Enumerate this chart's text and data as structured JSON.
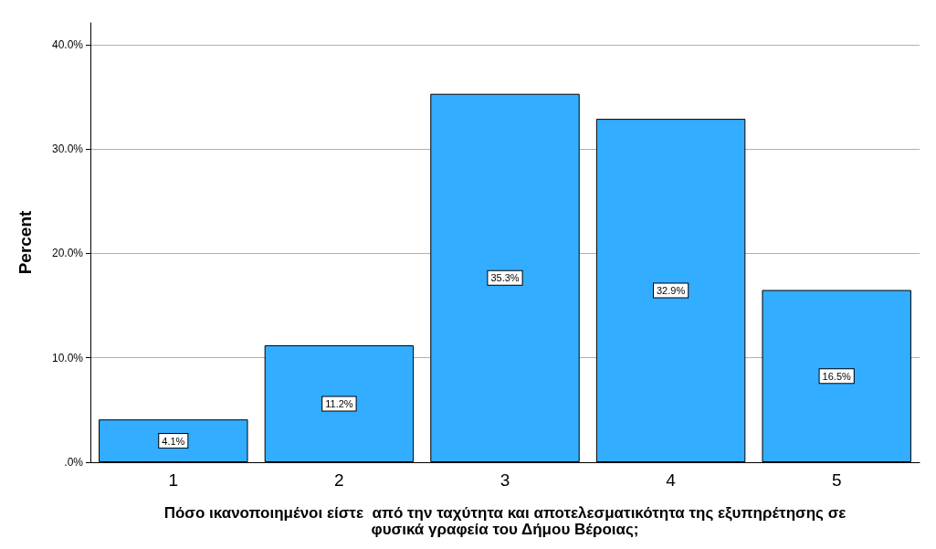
{
  "chart_data": {
    "type": "bar",
    "categories": [
      "1",
      "2",
      "3",
      "4",
      "5"
    ],
    "values": [
      4.1,
      11.2,
      35.3,
      32.9,
      16.5
    ],
    "value_labels": [
      "4.1%",
      "11.2%",
      "35.3%",
      "32.9%",
      "16.5%"
    ],
    "color": "#33adff",
    "xlabel": "Πόσο ικανοποιημένοι είστε  από την ταχύτητα και αποτελεσματικότητα της εξυπηρέτησης σε\nφυσικά γραφεία του Δήμου Βέροιας;",
    "ylabel": "Percent",
    "ylim": [
      0,
      42.1
    ],
    "yticks": [
      {
        "value": 0,
        "label": ".0%"
      },
      {
        "value": 10,
        "label": "10.0%"
      },
      {
        "value": 20,
        "label": "20.0%"
      },
      {
        "value": 30,
        "label": "30.0%"
      },
      {
        "value": 40,
        "label": "40.0%"
      }
    ],
    "grid": "y"
  }
}
